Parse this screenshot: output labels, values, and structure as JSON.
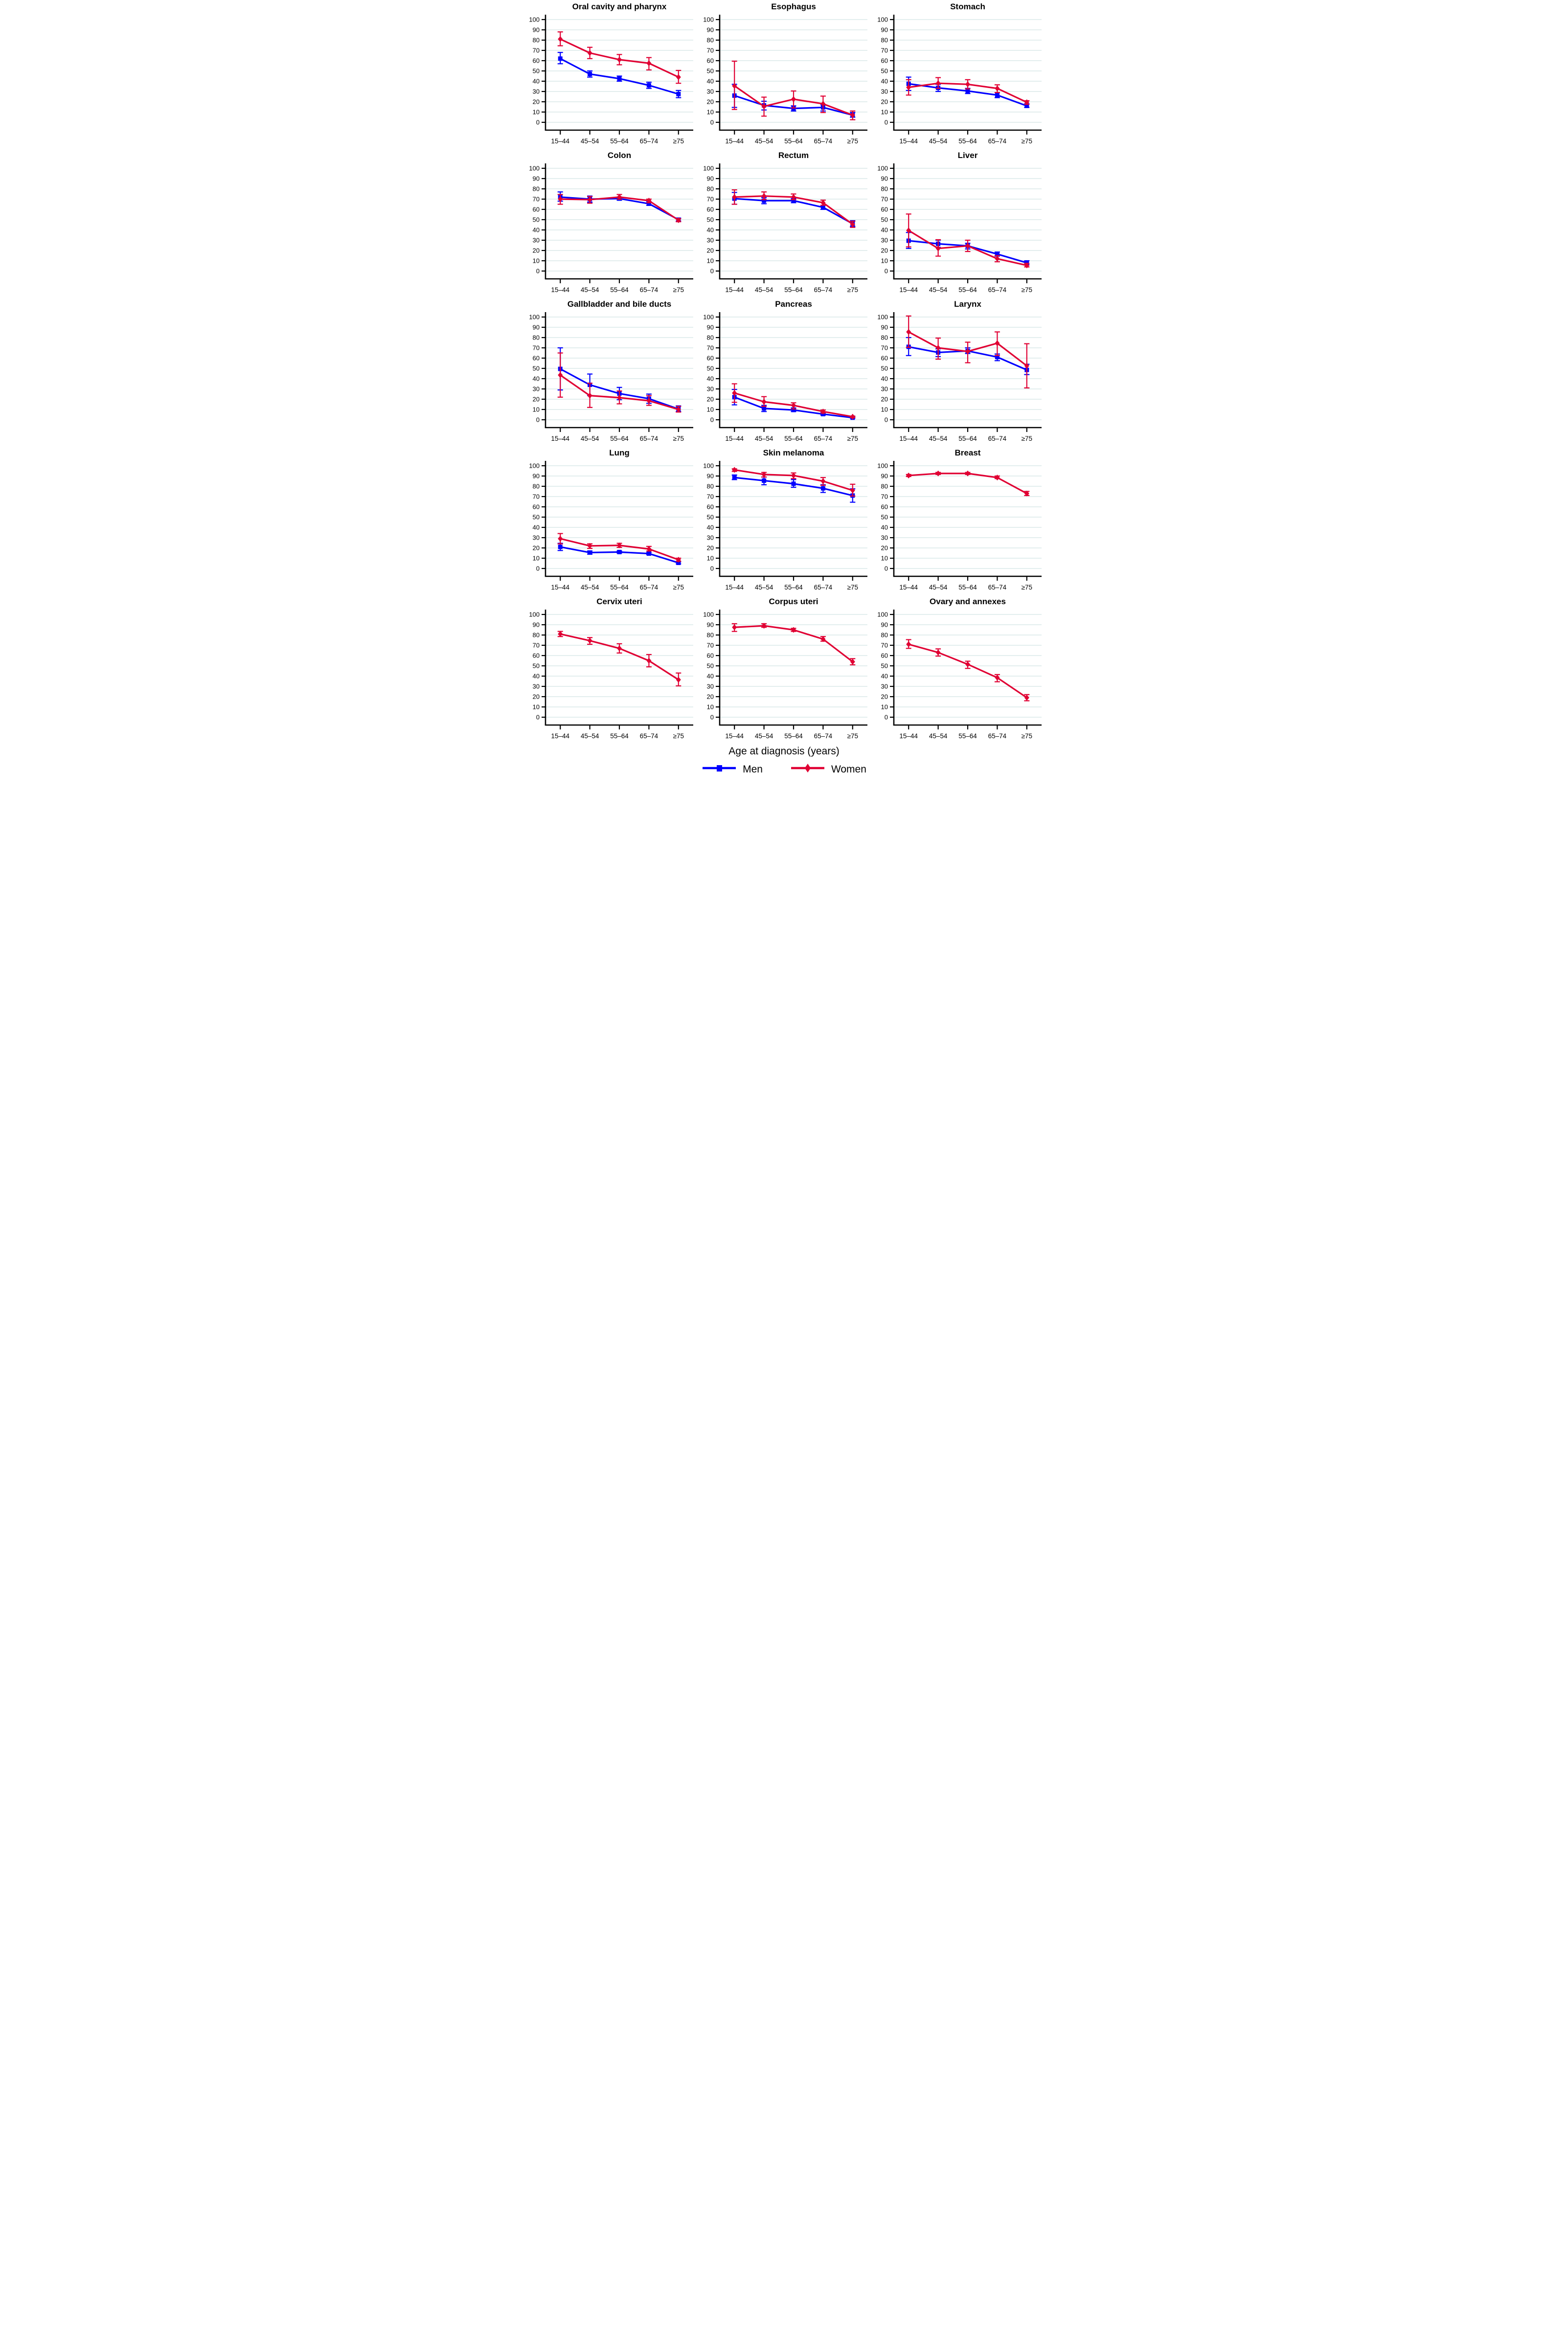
{
  "figure": {
    "xlabel": "Age at diagnosis (years)",
    "legend": [
      {
        "name": "men",
        "label": "Men",
        "color": "#0000FF",
        "marker": "square"
      },
      {
        "name": "women",
        "label": "Women",
        "color": "#E00033",
        "marker": "diamond"
      }
    ],
    "grid_color": "#E3EEEE",
    "axis_color": "#000000",
    "categories": [
      "15–44",
      "45–54",
      "55–64",
      "65–74",
      "≥75"
    ],
    "yticks": [
      0,
      10,
      20,
      30,
      40,
      50,
      60,
      70,
      80,
      90,
      100
    ]
  },
  "chart_data": [
    {
      "type": "line",
      "title": "Oral cavity and pharynx",
      "categories": [
        "15–44",
        "45–54",
        "55–64",
        "65–74",
        "≥75"
      ],
      "ylim": [
        0,
        100
      ],
      "series": [
        {
          "name": "Men",
          "values": [
            62,
            47,
            42.5,
            36,
            27.5
          ],
          "ci_low": [
            57,
            44,
            40,
            33,
            24
          ],
          "ci_high": [
            68,
            50,
            45,
            39,
            31
          ]
        },
        {
          "name": "Women",
          "values": [
            81,
            67.5,
            61,
            57.5,
            44
          ],
          "ci_low": [
            74.5,
            62,
            56,
            51,
            38
          ],
          "ci_high": [
            88,
            73,
            66,
            63,
            50.5
          ]
        }
      ]
    },
    {
      "type": "line",
      "title": "Esophagus",
      "categories": [
        "15–44",
        "45–54",
        "55–64",
        "65–74",
        "≥75"
      ],
      "ylim": [
        0,
        100
      ],
      "series": [
        {
          "name": "Men",
          "values": [
            26,
            16.5,
            13.5,
            14.5,
            7
          ],
          "ci_low": [
            14.5,
            12,
            11,
            11,
            5
          ],
          "ci_high": [
            37,
            20.5,
            16,
            17,
            9.5
          ]
        },
        {
          "name": "Women",
          "values": [
            35.5,
            15.5,
            22.5,
            18,
            7
          ],
          "ci_low": [
            12.5,
            6,
            14,
            9.5,
            2.5
          ],
          "ci_high": [
            59.5,
            24.5,
            30.5,
            25.5,
            11
          ]
        }
      ]
    },
    {
      "type": "line",
      "title": "Stomach",
      "categories": [
        "15–44",
        "45–54",
        "55–64",
        "65–74",
        "≥75"
      ],
      "ylim": [
        0,
        100
      ],
      "series": [
        {
          "name": "Men",
          "values": [
            37.5,
            33.5,
            30.5,
            26.5,
            16
          ],
          "ci_low": [
            31,
            30,
            28,
            24,
            14.5
          ],
          "ci_high": [
            44,
            37,
            33,
            29,
            18
          ]
        },
        {
          "name": "Women",
          "values": [
            34,
            38,
            37,
            33,
            19.5
          ],
          "ci_low": [
            26.5,
            33,
            32.5,
            29,
            17.5
          ],
          "ci_high": [
            41.5,
            43.5,
            41.5,
            36.5,
            21
          ]
        }
      ]
    },
    {
      "type": "line",
      "title": "Colon",
      "categories": [
        "15–44",
        "45–54",
        "55–64",
        "65–74",
        "≥75"
      ],
      "ylim": [
        0,
        100
      ],
      "series": [
        {
          "name": "Men",
          "values": [
            72,
            70,
            70.5,
            65.5,
            50
          ],
          "ci_low": [
            68,
            67,
            69,
            64,
            48.5
          ],
          "ci_high": [
            77,
            73,
            72,
            67.5,
            51.5
          ]
        },
        {
          "name": "Women",
          "values": [
            70,
            69.5,
            72,
            68.5,
            49.5
          ],
          "ci_low": [
            65,
            66,
            70,
            66.5,
            48
          ],
          "ci_high": [
            74.5,
            72.5,
            74.5,
            70,
            51
          ]
        }
      ]
    },
    {
      "type": "line",
      "title": "Rectum",
      "categories": [
        "15–44",
        "45–54",
        "55–64",
        "65–74",
        "≥75"
      ],
      "ylim": [
        0,
        100
      ],
      "series": [
        {
          "name": "Men",
          "values": [
            70.5,
            68.5,
            68.5,
            62,
            46
          ],
          "ci_low": [
            65,
            65.5,
            66.5,
            60,
            43.5
          ],
          "ci_high": [
            76.5,
            71.5,
            70.5,
            64,
            49
          ]
        },
        {
          "name": "Women",
          "values": [
            72,
            73,
            72,
            66.5,
            45.5
          ],
          "ci_low": [
            65,
            69.5,
            69.5,
            64,
            42.5
          ],
          "ci_high": [
            79,
            77,
            75,
            69,
            48.5
          ]
        }
      ]
    },
    {
      "type": "line",
      "title": "Liver",
      "categories": [
        "15–44",
        "45–54",
        "55–64",
        "65–74",
        "≥75"
      ],
      "ylim": [
        0,
        100
      ],
      "series": [
        {
          "name": "Men",
          "values": [
            29.5,
            26.5,
            24.5,
            16.5,
            8
          ],
          "ci_low": [
            22,
            23,
            21.5,
            14.5,
            6
          ],
          "ci_high": [
            37.5,
            30,
            27,
            18.5,
            10
          ]
        },
        {
          "name": "Women",
          "values": [
            39.5,
            22,
            24.5,
            12,
            5.5
          ],
          "ci_low": [
            23.5,
            14.5,
            19,
            9,
            4
          ],
          "ci_high": [
            55.5,
            30.5,
            30,
            15,
            7.5
          ]
        }
      ]
    },
    {
      "type": "line",
      "title": "Gallbladder and bile ducts",
      "categories": [
        "15–44",
        "45–54",
        "55–64",
        "65–74",
        "≥75"
      ],
      "ylim": [
        0,
        100
      ],
      "series": [
        {
          "name": "Men",
          "values": [
            49.5,
            34,
            25.5,
            20.5,
            10.5
          ],
          "ci_low": [
            29,
            23.5,
            19.5,
            16,
            8
          ],
          "ci_high": [
            70,
            44.5,
            31.5,
            25,
            13.5
          ]
        },
        {
          "name": "Women",
          "values": [
            43.5,
            23.5,
            21.5,
            18.5,
            10
          ],
          "ci_low": [
            22,
            12,
            15.5,
            14,
            7.5
          ],
          "ci_high": [
            65,
            35.5,
            28,
            23.5,
            13
          ]
        }
      ]
    },
    {
      "type": "line",
      "title": "Pancreas",
      "categories": [
        "15–44",
        "45–54",
        "55–64",
        "65–74",
        "≥75"
      ],
      "ylim": [
        0,
        100
      ],
      "series": [
        {
          "name": "Men",
          "values": [
            22,
            11,
            9.5,
            5.5,
            2
          ],
          "ci_low": [
            14.5,
            8,
            8,
            4.5,
            1.5
          ],
          "ci_high": [
            29.5,
            14,
            11.5,
            7,
            3
          ]
        },
        {
          "name": "Women",
          "values": [
            26,
            17.5,
            14,
            8,
            3
          ],
          "ci_low": [
            17,
            13,
            10.5,
            6.5,
            2
          ],
          "ci_high": [
            35,
            22.5,
            16.5,
            9.5,
            3.5
          ]
        }
      ]
    },
    {
      "type": "line",
      "title": "Larynx",
      "categories": [
        "15–44",
        "45–54",
        "55–64",
        "65–74",
        "≥75"
      ],
      "ylim": [
        0,
        100
      ],
      "series": [
        {
          "name": "Men",
          "values": [
            71,
            65.5,
            67,
            61,
            48.5
          ],
          "ci_low": [
            62.5,
            61.5,
            64.5,
            57.5,
            44
          ],
          "ci_high": [
            80,
            69,
            70,
            64,
            54
          ]
        },
        {
          "name": "Women",
          "values": [
            85.5,
            70,
            66.5,
            74.5,
            52.5
          ],
          "ci_low": [
            70.5,
            59,
            55.5,
            62.5,
            31
          ],
          "ci_high": [
            101,
            79.5,
            75.5,
            85.5,
            74
          ]
        }
      ]
    },
    {
      "type": "line",
      "title": "Lung",
      "categories": [
        "15–44",
        "45–54",
        "55–64",
        "65–74",
        "≥75"
      ],
      "ylim": [
        0,
        100
      ],
      "series": [
        {
          "name": "Men",
          "values": [
            21,
            15.5,
            16,
            14.5,
            5.5
          ],
          "ci_low": [
            17.5,
            14,
            15,
            13.5,
            4.5
          ],
          "ci_high": [
            24.5,
            17,
            17,
            15.5,
            6.5
          ]
        },
        {
          "name": "Women",
          "values": [
            29,
            22,
            22.5,
            19,
            8.5
          ],
          "ci_low": [
            24,
            19.5,
            20.5,
            17,
            7
          ],
          "ci_high": [
            34,
            24,
            24.5,
            21.5,
            10
          ]
        }
      ]
    },
    {
      "type": "line",
      "title": "Skin melanoma",
      "categories": [
        "15–44",
        "45–54",
        "55–64",
        "65–74",
        "≥75"
      ],
      "ylim": [
        0,
        100
      ],
      "series": [
        {
          "name": "Men",
          "values": [
            88.5,
            85.5,
            82.5,
            78,
            71
          ],
          "ci_low": [
            86.5,
            81.5,
            79,
            74,
            64.5
          ],
          "ci_high": [
            91,
            89,
            86.5,
            81.5,
            77.5
          ]
        },
        {
          "name": "Women",
          "values": [
            96,
            91.5,
            90.5,
            85,
            76
          ],
          "ci_low": [
            94.5,
            89,
            87.5,
            81,
            70.5
          ],
          "ci_high": [
            97,
            93.5,
            93,
            88.5,
            82
          ]
        }
      ]
    },
    {
      "type": "line",
      "title": "Breast",
      "categories": [
        "15–44",
        "45–54",
        "55–64",
        "65–74",
        "≥75"
      ],
      "ylim": [
        0,
        100
      ],
      "series": [
        {
          "name": "Women",
          "values": [
            90.5,
            92.5,
            92.5,
            88.5,
            73
          ],
          "ci_low": [
            89.5,
            91.5,
            91.5,
            87.5,
            71
          ],
          "ci_high": [
            91.5,
            93.5,
            93.5,
            90,
            75
          ]
        }
      ]
    },
    {
      "type": "line",
      "title": "Cervix uteri",
      "categories": [
        "15–44",
        "45–54",
        "55–64",
        "65–74",
        "≥75"
      ],
      "ylim": [
        0,
        100
      ],
      "series": [
        {
          "name": "Women",
          "values": [
            81,
            74.5,
            67,
            55,
            36.5
          ],
          "ci_low": [
            78.5,
            71,
            62.5,
            49,
            30.5
          ],
          "ci_high": [
            83.5,
            77.5,
            71.5,
            61,
            43
          ]
        }
      ]
    },
    {
      "type": "line",
      "title": "Corpus uteri",
      "categories": [
        "15–44",
        "45–54",
        "55–64",
        "65–74",
        "≥75"
      ],
      "ylim": [
        0,
        100
      ],
      "series": [
        {
          "name": "Women",
          "values": [
            87.5,
            89,
            85,
            76,
            54
          ],
          "ci_low": [
            83.5,
            87.5,
            83.5,
            74,
            51
          ],
          "ci_high": [
            91,
            91,
            86.5,
            78.5,
            57
          ]
        }
      ]
    },
    {
      "type": "line",
      "title": "Ovary and annexes",
      "categories": [
        "15–44",
        "45–54",
        "55–64",
        "65–74",
        "≥75"
      ],
      "ylim": [
        0,
        100
      ],
      "series": [
        {
          "name": "Women",
          "values": [
            71,
            63,
            51.5,
            38.5,
            19
          ],
          "ci_low": [
            67,
            59.5,
            47.5,
            34.5,
            16
          ],
          "ci_high": [
            75.5,
            66.5,
            54.5,
            41.5,
            22
          ]
        }
      ]
    }
  ]
}
